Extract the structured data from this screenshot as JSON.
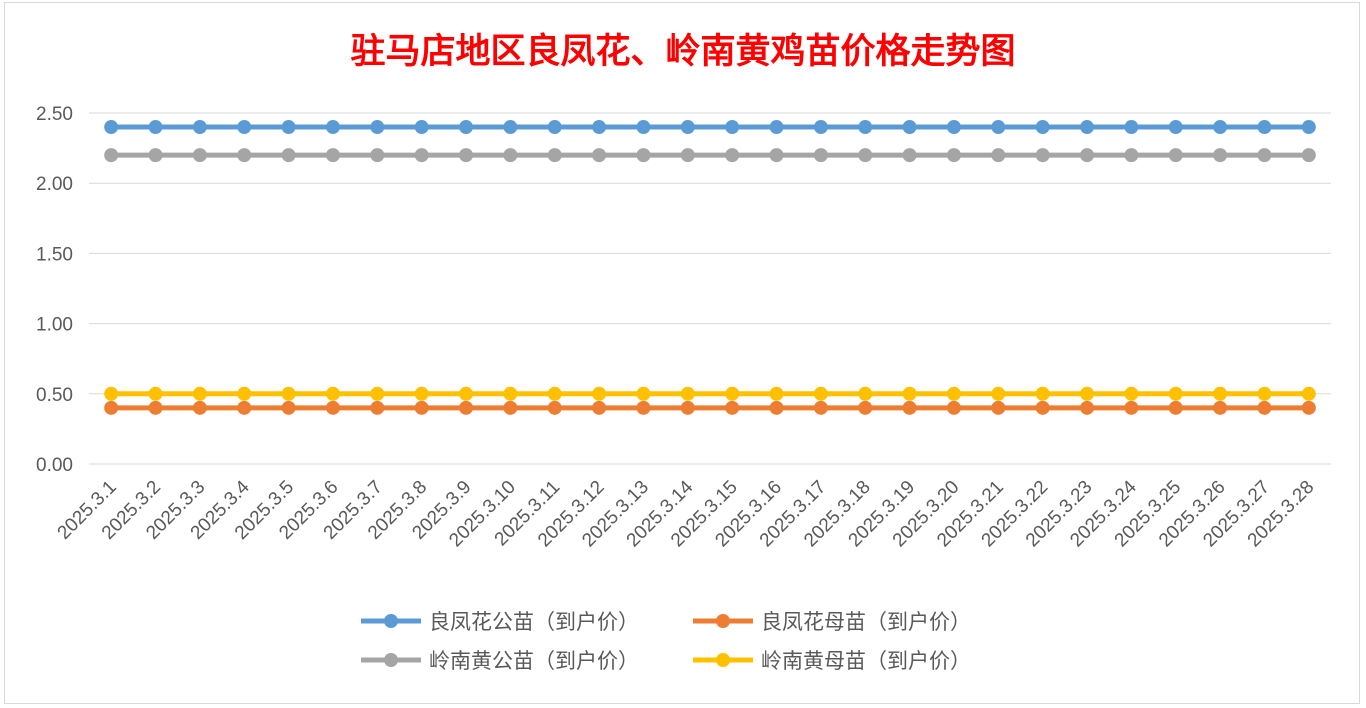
{
  "chart_data": {
    "type": "line",
    "title": "驻马店地区良凤花、岭南黄鸡苗价格走势图",
    "xlabel": "",
    "ylabel": "",
    "ylim": [
      0,
      2.5
    ],
    "yticks": [
      "0.00",
      "0.50",
      "1.00",
      "1.50",
      "2.00",
      "2.50"
    ],
    "grid": true,
    "legend_position": "bottom",
    "categories": [
      "2025.3.1",
      "2025.3.2",
      "2025.3.3",
      "2025.3.4",
      "2025.3.5",
      "2025.3.6",
      "2025.3.7",
      "2025.3.8",
      "2025.3.9",
      "2025.3.10",
      "2025.3.11",
      "2025.3.12",
      "2025.3.13",
      "2025.3.14",
      "2025.3.15",
      "2025.3.16",
      "2025.3.17",
      "2025.3.18",
      "2025.3.19",
      "2025.3.20",
      "2025.3.21",
      "2025.3.22",
      "2025.3.23",
      "2025.3.24",
      "2025.3.25",
      "2025.3.26",
      "2025.3.27",
      "2025.3.28"
    ],
    "series": [
      {
        "name": "良凤花公苗（到户价）",
        "color": "#5b9bd5",
        "values": [
          2.4,
          2.4,
          2.4,
          2.4,
          2.4,
          2.4,
          2.4,
          2.4,
          2.4,
          2.4,
          2.4,
          2.4,
          2.4,
          2.4,
          2.4,
          2.4,
          2.4,
          2.4,
          2.4,
          2.4,
          2.4,
          2.4,
          2.4,
          2.4,
          2.4,
          2.4,
          2.4,
          2.4
        ]
      },
      {
        "name": "良凤花母苗（到户价）",
        "color": "#ed7d31",
        "values": [
          0.4,
          0.4,
          0.4,
          0.4,
          0.4,
          0.4,
          0.4,
          0.4,
          0.4,
          0.4,
          0.4,
          0.4,
          0.4,
          0.4,
          0.4,
          0.4,
          0.4,
          0.4,
          0.4,
          0.4,
          0.4,
          0.4,
          0.4,
          0.4,
          0.4,
          0.4,
          0.4,
          0.4
        ]
      },
      {
        "name": "岭南黄公苗（到户价）",
        "color": "#a5a5a5",
        "values": [
          2.2,
          2.2,
          2.2,
          2.2,
          2.2,
          2.2,
          2.2,
          2.2,
          2.2,
          2.2,
          2.2,
          2.2,
          2.2,
          2.2,
          2.2,
          2.2,
          2.2,
          2.2,
          2.2,
          2.2,
          2.2,
          2.2,
          2.2,
          2.2,
          2.2,
          2.2,
          2.2,
          2.2
        ]
      },
      {
        "name": "岭南黄母苗（到户价）",
        "color": "#ffc000",
        "values": [
          0.5,
          0.5,
          0.5,
          0.5,
          0.5,
          0.5,
          0.5,
          0.5,
          0.5,
          0.5,
          0.5,
          0.5,
          0.5,
          0.5,
          0.5,
          0.5,
          0.5,
          0.5,
          0.5,
          0.5,
          0.5,
          0.5,
          0.5,
          0.5,
          0.5,
          0.5,
          0.5,
          0.5
        ]
      }
    ],
    "title_color": "#ff0000",
    "gridline_color": "#d9d9d9",
    "tick_color": "#595959"
  }
}
